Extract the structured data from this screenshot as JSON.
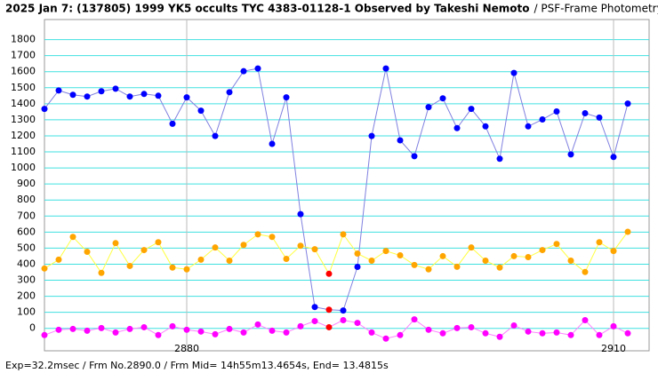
{
  "chart_data": {
    "type": "line",
    "title": "2025 Jan 7: (137805) 1999 YK5 occults TYC 4383-01128-1 Observed by Takeshi Nemoto",
    "subtitle": "/ PSF-Frame Photometry /",
    "footer": "Exp=32.2msec / Frm No.2890.0 / Frm Mid= 14h55m13.4654s, End= 13.4815s",
    "x": [
      2870,
      2871,
      2872,
      2873,
      2874,
      2875,
      2876,
      2877,
      2878,
      2879,
      2880,
      2881,
      2882,
      2883,
      2884,
      2885,
      2886,
      2887,
      2888,
      2889,
      2890,
      2891,
      2892,
      2893,
      2894,
      2895,
      2896,
      2897,
      2898,
      2899,
      2900,
      2901,
      2902,
      2903,
      2904,
      2905,
      2906,
      2907,
      2908,
      2909,
      2910,
      2911
    ],
    "series": [
      {
        "color": "#0000ff",
        "line_color": "#8080e0",
        "values": [
          1368,
          1483,
          1456,
          1445,
          1478,
          1494,
          1445,
          1461,
          1450,
          1275,
          1440,
          1357,
          1199,
          1472,
          1603,
          1620,
          1150,
          1440,
          712,
          133,
          116,
          111,
          383,
          1199,
          1620,
          1172,
          1073,
          1379,
          1434,
          1248,
          1368,
          1259,
          1057,
          1592,
          1259,
          1302,
          1352,
          1084,
          1341,
          1314,
          1068,
          1401
        ]
      },
      {
        "color": "#ffa500",
        "line_color": "#ffff40",
        "values": [
          373,
          428,
          570,
          477,
          346,
          531,
          389,
          488,
          537,
          379,
          368,
          428,
          504,
          422,
          520,
          586,
          570,
          433,
          515,
          493,
          340,
          586,
          466,
          422,
          482,
          455,
          395,
          368,
          450,
          384,
          504,
          422,
          379,
          450,
          444,
          488,
          526,
          422,
          351,
          537,
          482,
          602
        ]
      },
      {
        "color": "#ff00ff",
        "line_color": "#ff80ff",
        "values": [
          -42,
          -9,
          -4,
          -15,
          2,
          -26,
          -4,
          7,
          -42,
          13,
          -9,
          -20,
          -37,
          -4,
          -26,
          24,
          -15,
          -26,
          13,
          45,
          7,
          51,
          34,
          -26,
          -64,
          -42,
          56,
          -9,
          -31,
          2,
          7,
          -31,
          -53,
          18,
          -20,
          -31,
          -26,
          -42,
          51,
          -42,
          13,
          -31
        ]
      }
    ],
    "highlight_x": 2890,
    "highlight_color": "#ff0000",
    "xlim": [
      2870,
      2912.5
    ],
    "xticks": [
      2880,
      2910
    ],
    "ylim": [
      -140,
      1925
    ],
    "yticks": [
      0,
      100,
      200,
      300,
      400,
      500,
      600,
      700,
      800,
      900,
      1000,
      1100,
      1200,
      1300,
      1400,
      1500,
      1600,
      1700,
      1800
    ],
    "grid": true,
    "grid_color": "#40e0e0"
  }
}
